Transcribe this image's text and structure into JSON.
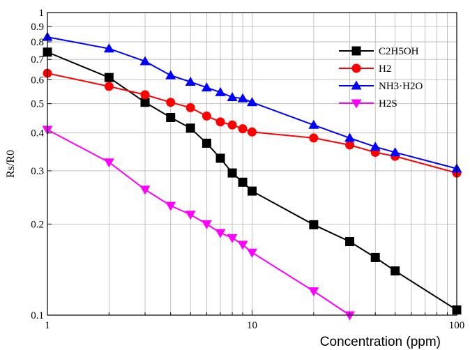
{
  "chart_data": {
    "type": "line",
    "title": "",
    "xlabel": "Concentration (ppm)",
    "ylabel": "Rs/R0",
    "xscale": "log",
    "yscale": "log",
    "xlim": [
      1,
      100
    ],
    "ylim": [
      0.1,
      1
    ],
    "xticks": [
      {
        "value": 1,
        "label": "1"
      },
      {
        "value": 10,
        "label": "10"
      },
      {
        "value": 100,
        "label": "100"
      }
    ],
    "yticks": [
      {
        "value": 0.1,
        "label": "0.1"
      },
      {
        "value": 0.2,
        "label": "0.2"
      },
      {
        "value": 0.3,
        "label": "0.3"
      },
      {
        "value": 0.4,
        "label": "0.4"
      },
      {
        "value": 0.5,
        "label": "0.5"
      },
      {
        "value": 0.6,
        "label": "0.6"
      },
      {
        "value": 0.7,
        "label": "0.7"
      },
      {
        "value": 0.8,
        "label": "0.8"
      },
      {
        "value": 0.9,
        "label": "0.9"
      },
      {
        "value": 1,
        "label": "1"
      }
    ],
    "grid": true,
    "legend_position": "top-right",
    "series": [
      {
        "name": "C2H5OH",
        "color": "#000000",
        "marker": "square",
        "x": [
          1,
          2,
          3,
          4,
          5,
          6,
          7,
          8,
          9,
          10,
          20,
          30,
          40,
          50,
          100
        ],
        "y": [
          0.74,
          0.61,
          0.505,
          0.45,
          0.415,
          0.37,
          0.33,
          0.295,
          0.275,
          0.257,
          0.199,
          0.175,
          0.155,
          0.14,
          0.104
        ]
      },
      {
        "name": "H2",
        "color": "#ff0000",
        "marker": "circle",
        "x": [
          1,
          2,
          3,
          4,
          5,
          6,
          7,
          8,
          9,
          10,
          20,
          30,
          40,
          50,
          100
        ],
        "y": [
          0.63,
          0.57,
          0.535,
          0.505,
          0.485,
          0.455,
          0.435,
          0.425,
          0.413,
          0.403,
          0.385,
          0.365,
          0.345,
          0.335,
          0.295
        ]
      },
      {
        "name": "NH3·H2O",
        "color": "#0000ff",
        "marker": "triangle-up",
        "x": [
          1,
          2,
          3,
          4,
          5,
          6,
          7,
          8,
          9,
          10,
          20,
          30,
          40,
          50,
          100
        ],
        "y": [
          0.83,
          0.76,
          0.69,
          0.62,
          0.59,
          0.565,
          0.545,
          0.525,
          0.52,
          0.505,
          0.425,
          0.385,
          0.36,
          0.345,
          0.305
        ]
      },
      {
        "name": "H2S",
        "color": "#ff00ff",
        "marker": "triangle-down",
        "x": [
          1,
          2,
          3,
          4,
          5,
          6,
          7,
          8,
          9,
          10,
          20,
          30
        ],
        "y": [
          0.41,
          0.32,
          0.26,
          0.23,
          0.215,
          0.2,
          0.187,
          0.18,
          0.171,
          0.161,
          0.12,
          0.1
        ]
      }
    ]
  }
}
